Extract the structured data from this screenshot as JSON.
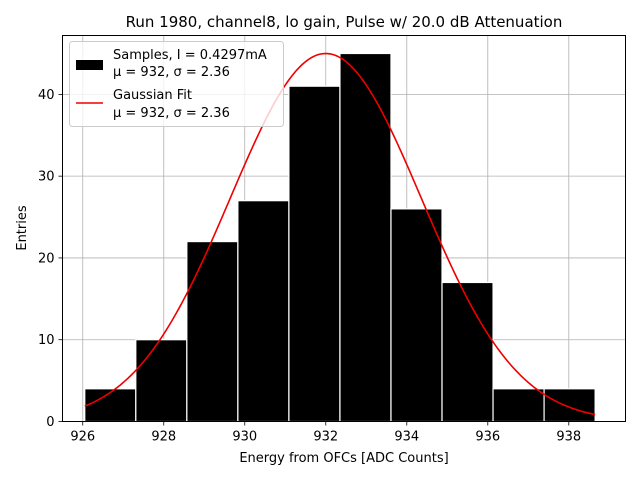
{
  "chart_data": {
    "type": "bar",
    "title": "Run 1980, channel8, lo gain, Pulse w/ 20.0 dB Attenuation",
    "xlabel": "Energy from OFCs [ADC Counts]",
    "ylabel": "Entries",
    "xlim": [
      925.5,
      939.4
    ],
    "ylim": [
      0,
      47.2
    ],
    "xticks": [
      926,
      928,
      930,
      932,
      934,
      936,
      938
    ],
    "yticks": [
      0,
      10,
      20,
      30,
      40
    ],
    "grid": true,
    "legend_position": "top-left",
    "bin_edges": [
      926.05,
      927.31,
      928.57,
      929.83,
      931.09,
      932.35,
      933.61,
      934.87,
      936.13,
      937.39,
      938.65
    ],
    "series": [
      {
        "name_lines": [
          "Samples, I = 0.4297mA",
          "μ = 932, σ = 2.36"
        ],
        "type": "histogram",
        "values": [
          4,
          10,
          22,
          27,
          41,
          45,
          26,
          17,
          4,
          4
        ],
        "color": "#000000",
        "edge_color": "#ffffff"
      },
      {
        "name_lines": [
          "Gaussian Fit",
          "μ = 932, σ = 2.36"
        ],
        "type": "line",
        "function": "gaussian",
        "mu": 932,
        "sigma": 2.36,
        "amplitude": 45,
        "x_range": [
          926.05,
          938.65
        ],
        "color": "#ee0000"
      }
    ]
  }
}
